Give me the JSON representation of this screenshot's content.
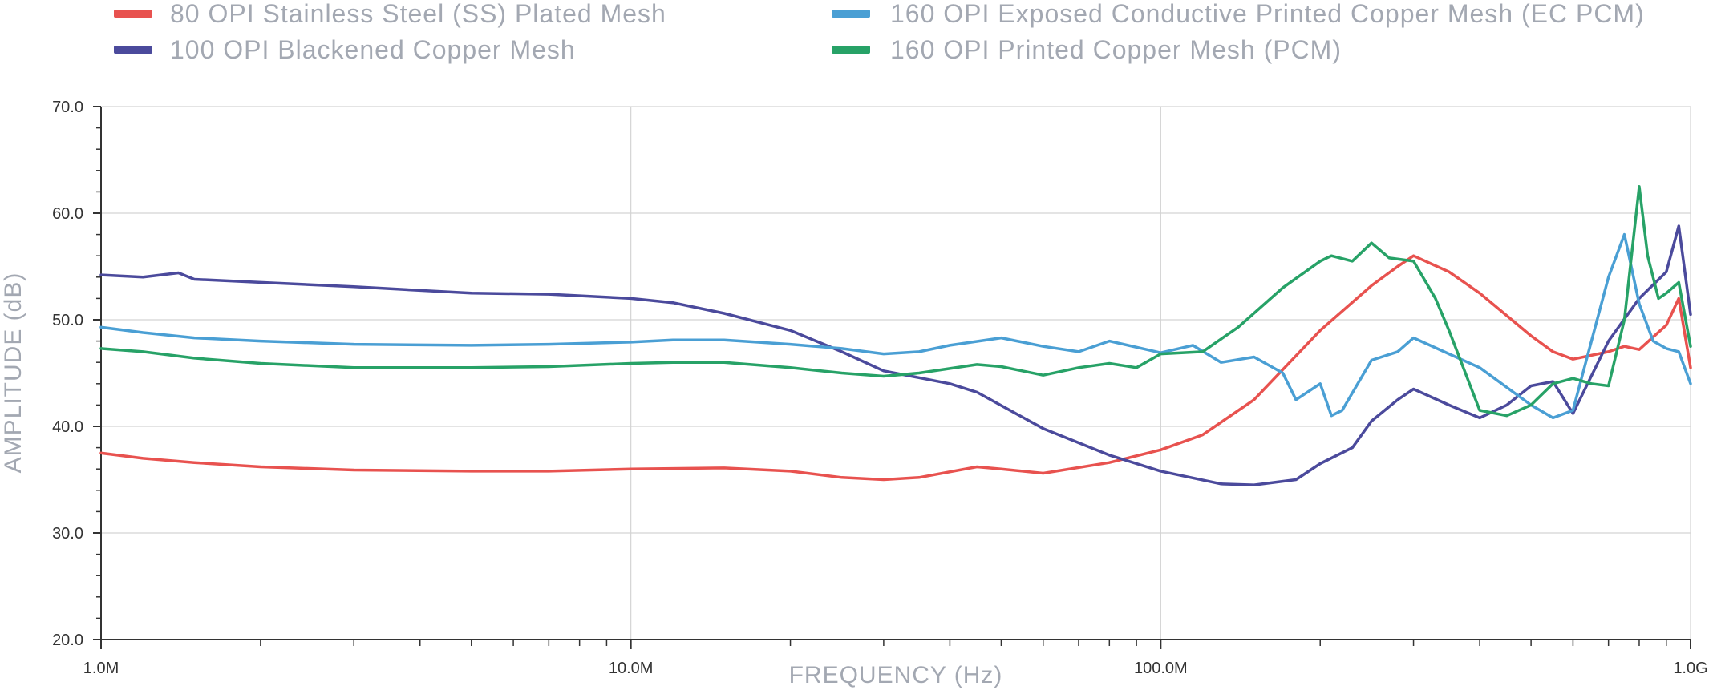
{
  "chart_data": {
    "type": "line",
    "xscale": "log",
    "xlim": [
      1000000,
      1000000000
    ],
    "ylim": [
      20,
      70
    ],
    "grid": true,
    "legend_position": "top",
    "xlabel": "FREQUENCY (Hz)",
    "ylabel": "AMPLITUDE (dB)",
    "x_ticks": [
      {
        "value": 1000000,
        "label": "1.0M"
      },
      {
        "value": 10000000,
        "label": "10.0M"
      },
      {
        "value": 100000000,
        "label": "100.0M"
      },
      {
        "value": 1000000000,
        "label": "1.0G"
      }
    ],
    "y_ticks": [
      {
        "value": 20,
        "label": "20.0"
      },
      {
        "value": 30,
        "label": "30.0"
      },
      {
        "value": 40,
        "label": "40.0"
      },
      {
        "value": 50,
        "label": "50.0"
      },
      {
        "value": 60,
        "label": "60.0"
      },
      {
        "value": 70,
        "label": "70.0"
      }
    ],
    "series": [
      {
        "name": "80 OPI Stainless Steel (SS) Plated Mesh",
        "color": "#e8524f",
        "x": [
          1000000,
          1200000,
          1500000,
          2000000,
          3000000,
          5000000,
          7000000,
          10000000,
          15000000,
          20000000,
          25000000,
          30000000,
          35000000,
          45000000,
          50000000,
          60000000,
          80000000,
          100000000,
          120000000,
          150000000,
          200000000,
          250000000,
          280000000,
          300000000,
          350000000,
          400000000,
          500000000,
          550000000,
          600000000,
          700000000,
          750000000,
          800000000,
          900000000,
          950000000,
          1000000000
        ],
        "y": [
          37.5,
          37.0,
          36.6,
          36.2,
          35.9,
          35.8,
          35.8,
          36.0,
          36.1,
          35.8,
          35.2,
          35.0,
          35.2,
          36.2,
          36.0,
          35.6,
          36.6,
          37.8,
          39.2,
          42.5,
          49.0,
          53.2,
          55.0,
          56.0,
          54.5,
          52.5,
          48.5,
          47.0,
          46.3,
          47.0,
          47.5,
          47.2,
          49.5,
          52.0,
          45.5
        ]
      },
      {
        "name": "100 OPI Blackened Copper Mesh",
        "color": "#4b4a9c",
        "x": [
          1000000,
          1200000,
          1400000,
          1500000,
          2000000,
          3000000,
          5000000,
          7000000,
          10000000,
          12000000,
          15000000,
          20000000,
          25000000,
          30000000,
          40000000,
          45000000,
          60000000,
          80000000,
          100000000,
          130000000,
          150000000,
          180000000,
          200000000,
          230000000,
          250000000,
          280000000,
          300000000,
          350000000,
          400000000,
          450000000,
          500000000,
          550000000,
          600000000,
          700000000,
          800000000,
          900000000,
          950000000,
          1000000000
        ],
        "y": [
          54.2,
          54.0,
          54.4,
          53.8,
          53.5,
          53.1,
          52.5,
          52.4,
          52.0,
          51.6,
          50.6,
          49.0,
          47.0,
          45.2,
          44.0,
          43.2,
          39.8,
          37.3,
          35.8,
          34.6,
          34.5,
          35.0,
          36.5,
          38.0,
          40.5,
          42.5,
          43.5,
          42.0,
          40.8,
          42.0,
          43.8,
          44.2,
          41.2,
          48.0,
          52.0,
          54.5,
          58.8,
          50.5
        ]
      },
      {
        "name": "160 OPI Exposed Conductive Printed Copper Mesh (EC PCM)",
        "color": "#4a9fd4",
        "x": [
          1000000,
          1200000,
          1500000,
          2000000,
          3000000,
          5000000,
          7000000,
          10000000,
          12000000,
          15000000,
          20000000,
          25000000,
          30000000,
          35000000,
          40000000,
          50000000,
          60000000,
          70000000,
          80000000,
          100000000,
          115000000,
          130000000,
          150000000,
          170000000,
          180000000,
          200000000,
          210000000,
          220000000,
          250000000,
          280000000,
          300000000,
          350000000,
          400000000,
          500000000,
          550000000,
          600000000,
          700000000,
          750000000,
          800000000,
          850000000,
          900000000,
          950000000,
          1000000000
        ],
        "y": [
          49.3,
          48.8,
          48.3,
          48.0,
          47.7,
          47.6,
          47.7,
          47.9,
          48.1,
          48.1,
          47.7,
          47.3,
          46.8,
          47.0,
          47.6,
          48.3,
          47.5,
          47.0,
          48.0,
          46.9,
          47.6,
          46.0,
          46.5,
          45.0,
          42.5,
          44.0,
          41.0,
          41.5,
          46.2,
          47.0,
          48.3,
          46.8,
          45.5,
          42.0,
          40.8,
          41.5,
          54.0,
          58.0,
          51.5,
          48.0,
          47.3,
          47.0,
          44.0
        ]
      },
      {
        "name": "160 OPI Printed Copper Mesh (PCM)",
        "color": "#27a267",
        "x": [
          1000000,
          1200000,
          1500000,
          2000000,
          3000000,
          5000000,
          7000000,
          10000000,
          12000000,
          15000000,
          20000000,
          25000000,
          30000000,
          35000000,
          45000000,
          50000000,
          60000000,
          70000000,
          80000000,
          90000000,
          100000000,
          120000000,
          140000000,
          170000000,
          200000000,
          210000000,
          230000000,
          250000000,
          270000000,
          300000000,
          330000000,
          350000000,
          400000000,
          450000000,
          500000000,
          550000000,
          600000000,
          650000000,
          700000000,
          750000000,
          800000000,
          830000000,
          870000000,
          900000000,
          950000000,
          1000000000
        ],
        "y": [
          47.3,
          47.0,
          46.4,
          45.9,
          45.5,
          45.5,
          45.6,
          45.9,
          46.0,
          46.0,
          45.5,
          45.0,
          44.7,
          45.0,
          45.8,
          45.6,
          44.8,
          45.5,
          45.9,
          45.5,
          46.8,
          47.0,
          49.3,
          53.0,
          55.5,
          56.0,
          55.5,
          57.2,
          55.8,
          55.5,
          52.0,
          49.0,
          41.5,
          41.0,
          42.0,
          44.0,
          44.5,
          44.0,
          43.8,
          50.0,
          62.5,
          56.0,
          52.0,
          52.5,
          53.5,
          47.5
        ]
      }
    ]
  }
}
